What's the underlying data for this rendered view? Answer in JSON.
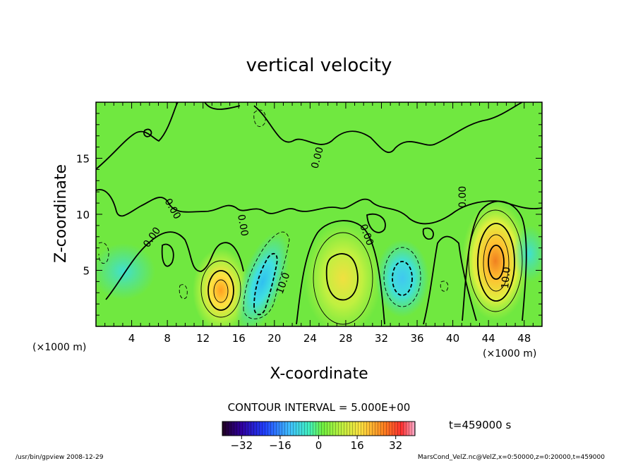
{
  "chart_data": {
    "type": "heatmap",
    "title": "vertical velocity",
    "xlabel": "X-coordinate",
    "ylabel": "Z-coordinate",
    "x_unit": "(×1000 m)",
    "y_unit": "(×1000 m)",
    "xlim": [
      0,
      50
    ],
    "ylim": [
      0,
      20
    ],
    "x_ticks": [
      4,
      8,
      12,
      16,
      20,
      24,
      28,
      32,
      36,
      40,
      44,
      48
    ],
    "y_ticks": [
      5,
      10,
      15
    ],
    "contour_interval_label": "CONTOUR INTERVAL = 5.000E+00",
    "contour_labels": [
      "0.00",
      "0.00",
      "0.00",
      "0.00",
      "0.00",
      "10.0",
      "10.0"
    ],
    "colorbar": {
      "min": -40,
      "max": 40,
      "ticks": [
        -32,
        -16,
        0,
        16,
        32
      ],
      "tick_labels": [
        "−32",
        "−16",
        "0",
        "16",
        "32"
      ]
    },
    "field_extrema": [
      {
        "x": 14,
        "z": 3.0,
        "value": 22
      },
      {
        "x": 19,
        "z": 3.5,
        "value": -18
      },
      {
        "x": 27.5,
        "z": 4.5,
        "value": 16
      },
      {
        "x": 34,
        "z": 4.0,
        "value": -14
      },
      {
        "x": 44.5,
        "z": 5.5,
        "value": 30
      }
    ]
  },
  "time_label": "t=459000 s",
  "footer": {
    "program": "/usr/bin/gpview   2008-12-29",
    "source": "MarsCond_VelZ.nc@VelZ,x=0:50000,z=0:20000,t=459000"
  }
}
